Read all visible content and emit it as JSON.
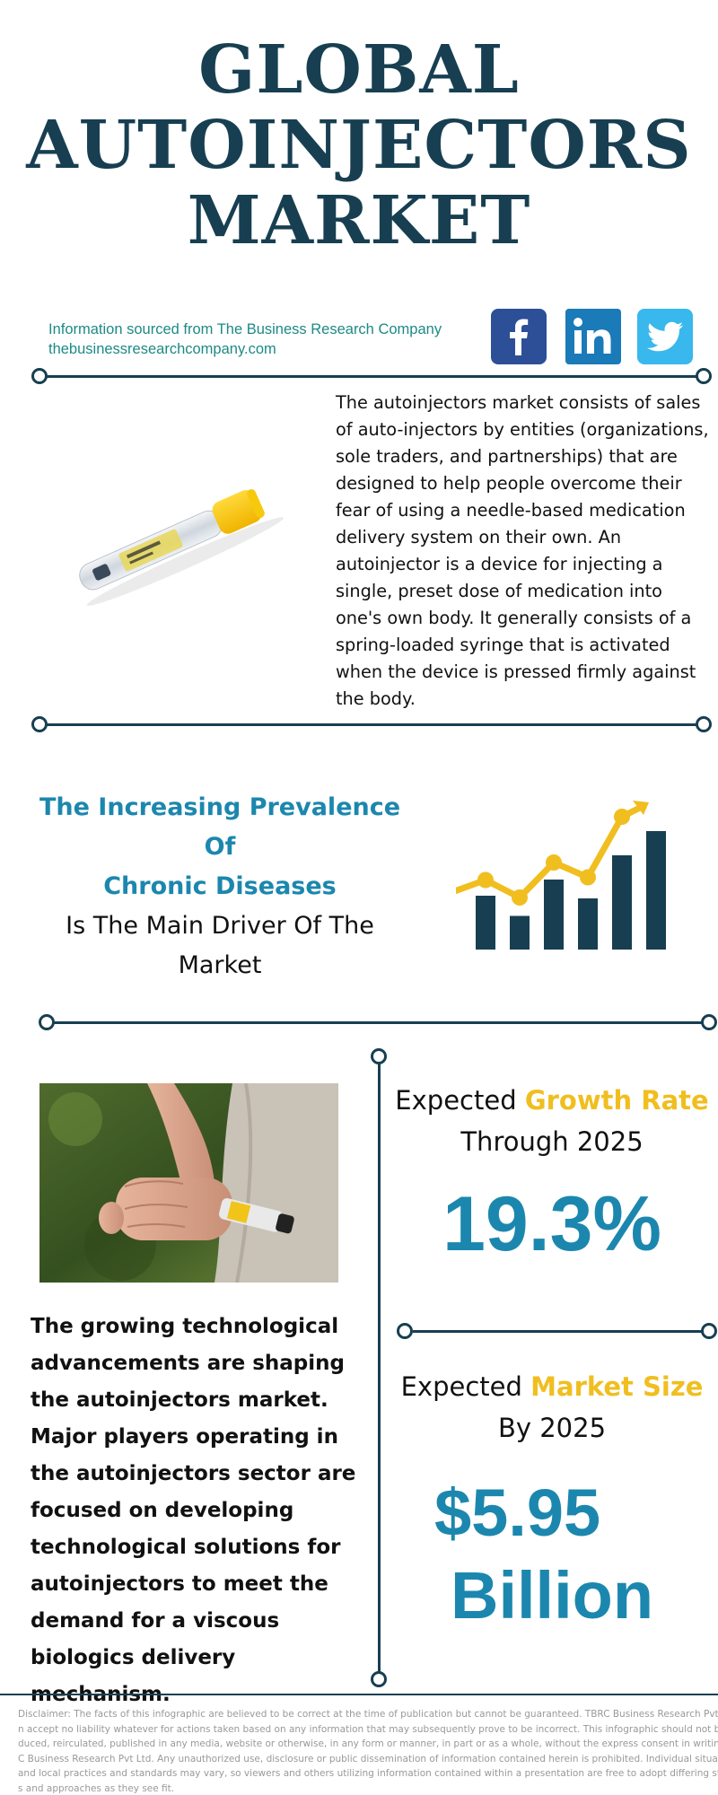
{
  "title": {
    "line1": "GLOBAL",
    "line2": "AUTOINJECTORS",
    "line3": "MARKET"
  },
  "source": {
    "line1": "Information sourced from The Business Research Company",
    "line2": "thebusinessresearchcompany.com"
  },
  "social": {
    "facebook_color": "#2c4f97",
    "linkedin_color": "#1b7ab8",
    "twitter_color": "#38b8ec"
  },
  "description": "The autoinjectors market consists of sales of auto-injectors by entities (organizations, sole traders, and partnerships) that are designed to help people overcome their fear of using a needle-based medication delivery system on their own. An autoinjector is a device for injecting a single, preset dose of medication into one's own body. It generally consists of a spring-loaded syringe that is activated when the device is pressed firmly against the body.",
  "driver": {
    "highlight_line1": "The Increasing Prevalence Of",
    "highlight_line2": "Chronic Diseases",
    "plain_line1": "Is The Main Driver Of The",
    "plain_line2": "Market"
  },
  "growth_icon": {
    "bar_color": "#173f51",
    "line_color": "#f0be1f",
    "bar_levels": [
      0.4,
      0.25,
      0.52,
      0.38,
      0.7,
      0.88
    ],
    "trend_points": [
      0.45,
      0.32,
      0.58,
      0.47,
      0.92,
      1.0
    ]
  },
  "tech_text": "The growing technological advancements are shaping the autoinjectors market. Major players operating in the autoinjectors sector are focused on developing technological solutions for autoinjectors to meet the demand for a viscous biologics delivery mechanism.",
  "growth_rate": {
    "prefix": "Expected",
    "accent": "Growth Rate",
    "line2": "Through 2025",
    "value": "19.3%"
  },
  "market_size": {
    "prefix": "Expected",
    "accent": "Market Size",
    "line2": "By 2025",
    "value_line1": "$5.95",
    "value_line2": "Billion"
  },
  "disclaimer": [
    "Disclaimer: The facts of this infographic are believed to be correct at the time of publication but cannot be guaranteed. TBRC Business Research Pvt Ltd c",
    "n accept no liability whatever for actions taken based on any information that may subsequently prove to be incorrect. This infographic should not be repr",
    "duced, reirculated, published in any media, website or otherwise, in any form or manner, in part or as a whole, without the express consent in writing of TB",
    "C Business Research Pvt Ltd. Any unauthorized use, disclosure or public dissemination of information contained herein is prohibited. Individual situations",
    "and local practices and standards may vary, so viewers and others utilizing information contained within a presentation are free to adopt differing standar",
    "s and approaches as they see fit."
  ]
}
